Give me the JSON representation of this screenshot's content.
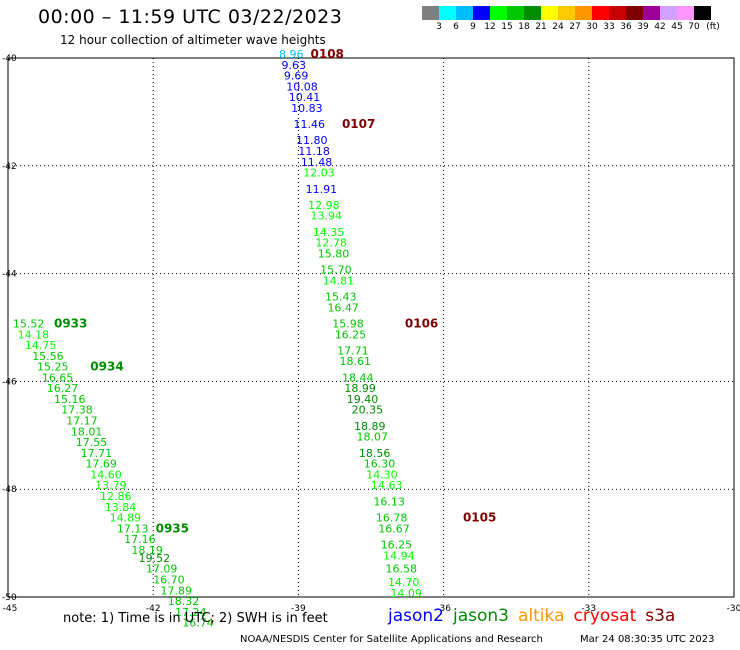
{
  "header": {
    "title": "00:00 – 11:59 UTC 03/22/2023",
    "subtitle": "12 hour collection of altimeter wave heights"
  },
  "colorbar": {
    "colors": [
      "#7f7f7f",
      "#00ffff",
      "#00bfff",
      "#0000ff",
      "#00ff00",
      "#00c800",
      "#008c00",
      "#ffff00",
      "#ffc800",
      "#ff9600",
      "#ff0000",
      "#c80000",
      "#800000",
      "#9b009b",
      "#d2a0ff",
      "#ff96ff",
      "#000000"
    ],
    "labels": [
      "3",
      "6",
      "9",
      "12",
      "15",
      "18",
      "21",
      "24",
      "27",
      "30",
      "33",
      "36",
      "39",
      "42",
      "45",
      "70"
    ],
    "unit": "(ft)"
  },
  "axes": {
    "x_ticks": [
      "-45",
      "-42",
      "-39",
      "-36",
      "-33",
      "-30"
    ],
    "y_ticks": [
      "-40",
      "-42",
      "-44",
      "-46",
      "-48",
      "-50"
    ]
  },
  "chart_data": {
    "type": "scatter",
    "xlim": [
      -45,
      -30
    ],
    "ylim": [
      -50,
      -40
    ],
    "grid": true,
    "tracks": [
      {
        "label": "0108",
        "label_pos": [
          -38.75,
          -40.0
        ],
        "points": [
          {
            "lon": -39.4,
            "lat": -40.0,
            "swh": "8.96",
            "color": "#00bfff"
          },
          {
            "lon": -39.35,
            "lat": -40.2,
            "swh": "9.63",
            "color": "#0000ff"
          },
          {
            "lon": -39.3,
            "lat": -40.4,
            "swh": "9.69",
            "color": "#0000ff"
          },
          {
            "lon": -39.25,
            "lat": -40.6,
            "swh": "10.08",
            "color": "#0000ff"
          },
          {
            "lon": -39.2,
            "lat": -40.8,
            "swh": "10.41",
            "color": "#0000ff"
          },
          {
            "lon": -39.15,
            "lat": -41.0,
            "swh": "10.83",
            "color": "#0000ff"
          }
        ]
      },
      {
        "label": "0107",
        "label_pos": [
          -38.1,
          -41.3
        ],
        "points": [
          {
            "lon": -39.1,
            "lat": -41.3,
            "swh": "11.46",
            "color": "#0000ff"
          },
          {
            "lon": -39.05,
            "lat": -41.6,
            "swh": "11.80",
            "color": "#0000ff"
          },
          {
            "lon": -39.0,
            "lat": -41.8,
            "swh": "11.18",
            "color": "#0000ff"
          },
          {
            "lon": -38.95,
            "lat": -42.0,
            "swh": "11.48",
            "color": "#0000ff"
          },
          {
            "lon": -38.9,
            "lat": -42.2,
            "swh": "12.03",
            "color": "#00ff00"
          },
          {
            "lon": -38.85,
            "lat": -42.5,
            "swh": "11.91",
            "color": "#0000ff"
          },
          {
            "lon": -38.8,
            "lat": -42.8,
            "swh": "12.98",
            "color": "#00ff00"
          },
          {
            "lon": -38.75,
            "lat": -43.0,
            "swh": "13.94",
            "color": "#00ff00"
          },
          {
            "lon": -38.7,
            "lat": -43.3,
            "swh": "14.35",
            "color": "#00ff00"
          },
          {
            "lon": -38.65,
            "lat": -43.5,
            "swh": "12.78",
            "color": "#00ff00"
          },
          {
            "lon": -38.6,
            "lat": -43.7,
            "swh": "15.80",
            "color": "#00c800"
          },
          {
            "lon": -38.55,
            "lat": -44.0,
            "swh": "15.70",
            "color": "#00c800"
          },
          {
            "lon": -38.5,
            "lat": -44.2,
            "swh": "14.81",
            "color": "#00ff00"
          },
          {
            "lon": -38.45,
            "lat": -44.5,
            "swh": "15.43",
            "color": "#00c800"
          },
          {
            "lon": -38.4,
            "lat": -44.7,
            "swh": "16.47",
            "color": "#00c800"
          }
        ]
      },
      {
        "label": "0106",
        "label_pos": [
          -36.8,
          -45.0
        ],
        "points": [
          {
            "lon": -38.3,
            "lat": -45.0,
            "swh": "15.98",
            "color": "#00c800"
          },
          {
            "lon": -38.25,
            "lat": -45.2,
            "swh": "16.25",
            "color": "#00c800"
          },
          {
            "lon": -38.2,
            "lat": -45.5,
            "swh": "17.71",
            "color": "#00c800"
          },
          {
            "lon": -38.15,
            "lat": -45.7,
            "swh": "18.61",
            "color": "#00c800"
          },
          {
            "lon": -38.1,
            "lat": -46.0,
            "swh": "18.44",
            "color": "#00c800"
          },
          {
            "lon": -38.05,
            "lat": -46.2,
            "swh": "18.99",
            "color": "#008c00"
          },
          {
            "lon": -38.0,
            "lat": -46.4,
            "swh": "19.40",
            "color": "#008c00"
          },
          {
            "lon": -37.9,
            "lat": -46.6,
            "swh": "20.35",
            "color": "#008c00"
          },
          {
            "lon": -37.85,
            "lat": -46.9,
            "swh": "18.89",
            "color": "#008c00"
          },
          {
            "lon": -37.8,
            "lat": -47.1,
            "swh": "18.07",
            "color": "#00c800"
          },
          {
            "lon": -37.75,
            "lat": -47.4,
            "swh": "18.56",
            "color": "#008c00"
          },
          {
            "lon": -37.65,
            "lat": -47.6,
            "swh": "16.30",
            "color": "#00c800"
          },
          {
            "lon": -37.6,
            "lat": -47.8,
            "swh": "14.30",
            "color": "#00ff00"
          },
          {
            "lon": -37.5,
            "lat": -48.0,
            "swh": "14.63",
            "color": "#00ff00"
          },
          {
            "lon": -37.45,
            "lat": -48.3,
            "swh": "16.13",
            "color": "#00c800"
          }
        ]
      },
      {
        "label": "0105",
        "label_pos": [
          -35.6,
          -48.6
        ],
        "points": [
          {
            "lon": -37.4,
            "lat": -48.6,
            "swh": "16.78",
            "color": "#00c800"
          },
          {
            "lon": -37.35,
            "lat": -48.8,
            "swh": "16.67",
            "color": "#00c800"
          },
          {
            "lon": -37.3,
            "lat": -49.1,
            "swh": "16.25",
            "color": "#00c800"
          },
          {
            "lon": -37.25,
            "lat": -49.3,
            "swh": "14.94",
            "color": "#00ff00"
          },
          {
            "lon": -37.2,
            "lat": -49.55,
            "swh": "16.58",
            "color": "#00c800"
          },
          {
            "lon": -37.15,
            "lat": -49.8,
            "swh": "14.70",
            "color": "#00ff00"
          },
          {
            "lon": -37.1,
            "lat": -50.0,
            "swh": "14.09",
            "color": "#00ff00"
          }
        ]
      },
      {
        "label": "0933",
        "label_pos": [
          -44.05,
          -45.0
        ],
        "points": [
          {
            "lon": -44.9,
            "lat": -45.0,
            "swh": "15.52",
            "color": "#00c800"
          },
          {
            "lon": -44.8,
            "lat": -45.2,
            "swh": "14.18",
            "color": "#00ff00"
          },
          {
            "lon": -44.65,
            "lat": -45.4,
            "swh": "14.75",
            "color": "#00ff00"
          },
          {
            "lon": -44.5,
            "lat": -45.6,
            "swh": "15.56",
            "color": "#00c800"
          }
        ]
      },
      {
        "label": "0934",
        "label_pos": [
          -43.3,
          -45.8
        ],
        "points": [
          {
            "lon": -44.4,
            "lat": -45.8,
            "swh": "15.25",
            "color": "#00c800"
          },
          {
            "lon": -44.3,
            "lat": -46.0,
            "swh": "16.65",
            "color": "#00c800"
          },
          {
            "lon": -44.2,
            "lat": -46.2,
            "swh": "16.27",
            "color": "#00c800"
          },
          {
            "lon": -44.05,
            "lat": -46.4,
            "swh": "15.16",
            "color": "#00c800"
          },
          {
            "lon": -43.9,
            "lat": -46.6,
            "swh": "17.38",
            "color": "#00c800"
          },
          {
            "lon": -43.8,
            "lat": -46.8,
            "swh": "17.17",
            "color": "#00c800"
          },
          {
            "lon": -43.7,
            "lat": -47.0,
            "swh": "18.01",
            "color": "#00c800"
          },
          {
            "lon": -43.6,
            "lat": -47.2,
            "swh": "17.55",
            "color": "#00c800"
          },
          {
            "lon": -43.5,
            "lat": -47.4,
            "swh": "17.71",
            "color": "#00c800"
          },
          {
            "lon": -43.4,
            "lat": -47.6,
            "swh": "17.69",
            "color": "#00c800"
          },
          {
            "lon": -43.3,
            "lat": -47.8,
            "swh": "14.60",
            "color": "#00ff00"
          },
          {
            "lon": -43.2,
            "lat": -48.0,
            "swh": "13.79",
            "color": "#00ff00"
          },
          {
            "lon": -43.1,
            "lat": -48.2,
            "swh": "12.86",
            "color": "#00ff00"
          },
          {
            "lon": -43.0,
            "lat": -48.4,
            "swh": "13.84",
            "color": "#00ff00"
          },
          {
            "lon": -42.9,
            "lat": -48.6,
            "swh": "14.89",
            "color": "#00ff00"
          }
        ]
      },
      {
        "label": "0935",
        "label_pos": [
          -41.95,
          -48.8
        ],
        "points": [
          {
            "lon": -42.75,
            "lat": -48.8,
            "swh": "17.13",
            "color": "#00c800"
          },
          {
            "lon": -42.6,
            "lat": -49.0,
            "swh": "17.16",
            "color": "#00c800"
          },
          {
            "lon": -42.45,
            "lat": -49.2,
            "swh": "18.19",
            "color": "#00c800"
          },
          {
            "lon": -42.3,
            "lat": -49.35,
            "swh": "19.52",
            "color": "#008c00"
          },
          {
            "lon": -42.15,
            "lat": -49.55,
            "swh": "17.09",
            "color": "#00c800"
          },
          {
            "lon": -42.0,
            "lat": -49.75,
            "swh": "16.70",
            "color": "#00c800"
          },
          {
            "lon": -41.85,
            "lat": -49.95,
            "swh": "17.89",
            "color": "#00c800"
          },
          {
            "lon": -41.7,
            "lat": -50.15,
            "swh": "18.32",
            "color": "#00c800"
          },
          {
            "lon": -41.55,
            "lat": -50.35,
            "swh": "17.24",
            "color": "#00c800"
          },
          {
            "lon": -41.4,
            "lat": -50.55,
            "swh": "16.74",
            "color": "#00c800"
          }
        ]
      }
    ]
  },
  "note": "note: 1) Time is in UTC; 2) SWH is in feet",
  "satellites": [
    {
      "name": "jason2",
      "color": "#0000ff"
    },
    {
      "name": "jason3",
      "color": "#008c00"
    },
    {
      "name": "altika",
      "color": "#ff9600"
    },
    {
      "name": "cryosat",
      "color": "#ff0000"
    },
    {
      "name": "s3a",
      "color": "#800000"
    }
  ],
  "footer": {
    "org": "NOAA/NESDIS Center for Satellite Applications and Research",
    "timestamp": "Mar 24 08:30:35 UTC 2023"
  }
}
